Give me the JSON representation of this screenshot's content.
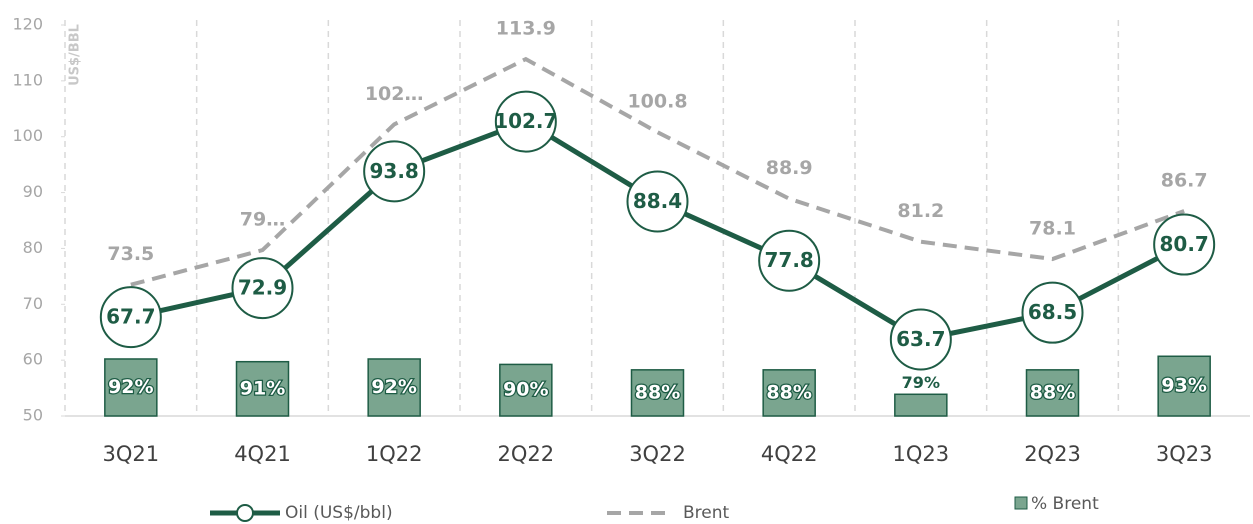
{
  "chart_data": {
    "type": "line",
    "y_axis_label": "US$/BBL",
    "categories": [
      "3Q21",
      "4Q21",
      "1Q22",
      "2Q22",
      "3Q22",
      "4Q22",
      "1Q23",
      "2Q23",
      "3Q23"
    ],
    "series": [
      {
        "name": "Oil (US$/bbl)",
        "type": "line",
        "color": "#1e5c45",
        "values": [
          67.7,
          72.9,
          93.8,
          102.7,
          88.4,
          77.8,
          63.7,
          68.5,
          80.7
        ]
      },
      {
        "name": "Brent",
        "type": "dashed-line",
        "color": "#a6a6a6",
        "values": [
          73.5,
          79.7,
          102.2,
          113.9,
          100.8,
          88.9,
          81.2,
          78.1,
          86.7
        ],
        "value_labels": [
          "73.5",
          "79…",
          "102…",
          "113.9",
          "100.8",
          "88.9",
          "81.2",
          "78.1",
          "86.7"
        ]
      },
      {
        "name": "% Brent",
        "type": "bar",
        "axis": "y2",
        "color": "#7aa58f",
        "values": [
          92,
          91,
          92,
          90,
          88,
          88,
          79,
          88,
          93
        ],
        "value_labels": [
          "92%",
          "91%",
          "92%",
          "90%",
          "88%",
          "88%",
          "79%",
          "88%",
          "93%"
        ]
      }
    ],
    "ylim": [
      50,
      120
    ],
    "yticks": [
      50,
      60,
      70,
      80,
      90,
      100,
      110,
      120
    ],
    "y2lim": [
      71,
      215
    ]
  }
}
